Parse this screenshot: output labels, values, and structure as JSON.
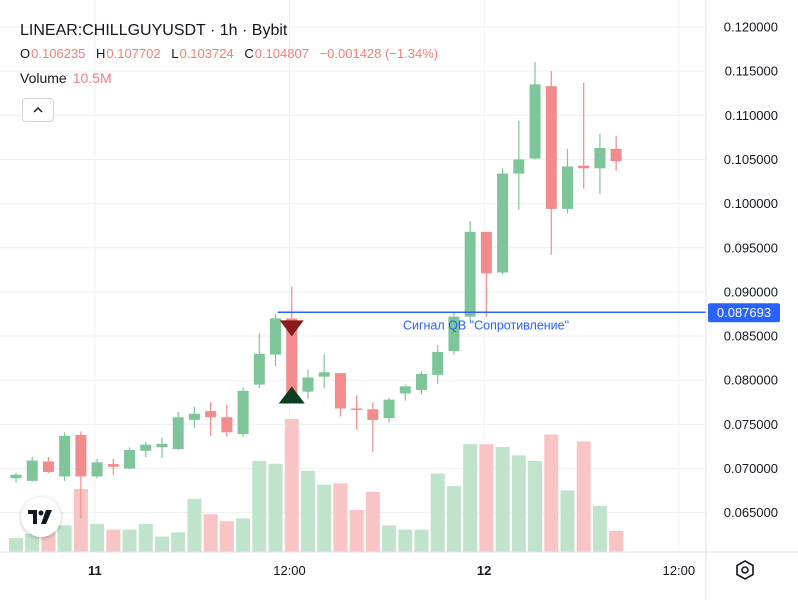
{
  "header": {
    "title": "LINEAR:CHILLGUYUSDT · 1h · Bybit",
    "ohlc": [
      {
        "key": "O",
        "value": "0.106235"
      },
      {
        "key": "H",
        "value": "0.107702"
      },
      {
        "key": "L",
        "value": "0.103724"
      },
      {
        "key": "C",
        "value": "0.104807"
      },
      {
        "key": "",
        "value": "−0.001428 (−1.34%)"
      }
    ],
    "volume_label": "Volume",
    "volume_value": "10.5M"
  },
  "icons": {
    "collapse": "chevron-up-icon",
    "logo": "tradingview-logo-icon",
    "settings": "gear-icon"
  },
  "colors": {
    "up": "#7ec699",
    "down": "#f28b8b",
    "vol_up": "#bfe3cb",
    "vol_down": "#f8c4c4",
    "level_line": "#2962ff",
    "marker_sell": "#8b1a1a",
    "marker_buy": "#0b3d1f",
    "grid": "#eef0f4",
    "text": "#131722"
  },
  "chart_data": {
    "type": "candlestick",
    "symbol": "LINEAR:CHILLGUYUSDT",
    "timeframe": "1h",
    "exchange": "Bybit",
    "ylim": [
      0.0605,
      0.1215
    ],
    "y_ticks": [
      "0.120000",
      "0.115000",
      "0.110000",
      "0.105000",
      "0.100000",
      "0.095000",
      "0.090000",
      "0.085000",
      "0.080000",
      "0.075000",
      "0.070000",
      "0.065000"
    ],
    "x_ticks": [
      "11",
      "12:00",
      "12",
      "12:00"
    ],
    "x_tick_bar_index": [
      4,
      16,
      28,
      40
    ],
    "candles": [
      {
        "o": 0.0689,
        "h": 0.0695,
        "l": 0.0684,
        "c": 0.0693
      },
      {
        "o": 0.0686,
        "h": 0.0713,
        "l": 0.0685,
        "c": 0.0709
      },
      {
        "o": 0.0708,
        "h": 0.0713,
        "l": 0.0695,
        "c": 0.0696
      },
      {
        "o": 0.0691,
        "h": 0.0741,
        "l": 0.0686,
        "c": 0.0737
      },
      {
        "o": 0.0738,
        "h": 0.0742,
        "l": 0.0643,
        "c": 0.0691
      },
      {
        "o": 0.0691,
        "h": 0.0711,
        "l": 0.0689,
        "c": 0.0707
      },
      {
        "o": 0.0705,
        "h": 0.0711,
        "l": 0.0693,
        "c": 0.0702
      },
      {
        "o": 0.07,
        "h": 0.0724,
        "l": 0.0699,
        "c": 0.0721
      },
      {
        "o": 0.072,
        "h": 0.073,
        "l": 0.0713,
        "c": 0.0727
      },
      {
        "o": 0.0724,
        "h": 0.0735,
        "l": 0.0712,
        "c": 0.0728
      },
      {
        "o": 0.0722,
        "h": 0.0764,
        "l": 0.0721,
        "c": 0.0758
      },
      {
        "o": 0.0755,
        "h": 0.077,
        "l": 0.0746,
        "c": 0.0762
      },
      {
        "o": 0.0765,
        "h": 0.0775,
        "l": 0.0737,
        "c": 0.0758
      },
      {
        "o": 0.0758,
        "h": 0.0772,
        "l": 0.0736,
        "c": 0.0741
      },
      {
        "o": 0.0739,
        "h": 0.0792,
        "l": 0.0736,
        "c": 0.0788
      },
      {
        "o": 0.0795,
        "h": 0.0853,
        "l": 0.0791,
        "c": 0.083
      },
      {
        "o": 0.0829,
        "h": 0.0875,
        "l": 0.0816,
        "c": 0.087
      },
      {
        "o": 0.087,
        "h": 0.0906,
        "l": 0.0781,
        "c": 0.0785
      },
      {
        "o": 0.0787,
        "h": 0.0812,
        "l": 0.0779,
        "c": 0.0803
      },
      {
        "o": 0.0804,
        "h": 0.0829,
        "l": 0.0791,
        "c": 0.0809
      },
      {
        "o": 0.0808,
        "h": 0.0808,
        "l": 0.0759,
        "c": 0.0768
      },
      {
        "o": 0.0768,
        "h": 0.0783,
        "l": 0.0744,
        "c": 0.0767
      },
      {
        "o": 0.0767,
        "h": 0.0775,
        "l": 0.0719,
        "c": 0.0755
      },
      {
        "o": 0.0757,
        "h": 0.078,
        "l": 0.0752,
        "c": 0.0778
      },
      {
        "o": 0.0785,
        "h": 0.0795,
        "l": 0.0777,
        "c": 0.0793
      },
      {
        "o": 0.0789,
        "h": 0.081,
        "l": 0.0784,
        "c": 0.0807
      },
      {
        "o": 0.0806,
        "h": 0.084,
        "l": 0.0796,
        "c": 0.0832
      },
      {
        "o": 0.0833,
        "h": 0.0876,
        "l": 0.0829,
        "c": 0.0872
      },
      {
        "o": 0.0872,
        "h": 0.098,
        "l": 0.0867,
        "c": 0.0968
      },
      {
        "o": 0.0968,
        "h": 0.0968,
        "l": 0.0872,
        "c": 0.0921
      },
      {
        "o": 0.0922,
        "h": 0.104,
        "l": 0.092,
        "c": 0.1034
      },
      {
        "o": 0.1034,
        "h": 0.1094,
        "l": 0.0993,
        "c": 0.105
      },
      {
        "o": 0.1051,
        "h": 0.116,
        "l": 0.105,
        "c": 0.1135
      },
      {
        "o": 0.1133,
        "h": 0.115,
        "l": 0.0942,
        "c": 0.0994
      },
      {
        "o": 0.0994,
        "h": 0.1062,
        "l": 0.0989,
        "c": 0.1042
      },
      {
        "o": 0.1043,
        "h": 0.1137,
        "l": 0.1017,
        "c": 0.104
      },
      {
        "o": 0.104,
        "h": 0.1079,
        "l": 0.1011,
        "c": 0.1063
      },
      {
        "o": 0.1062,
        "h": 0.1077,
        "l": 0.1037,
        "c": 0.1048
      }
    ],
    "volume_rel": [
      0.1,
      0.13,
      0.17,
      0.19,
      0.45,
      0.2,
      0.16,
      0.16,
      0.2,
      0.11,
      0.14,
      0.38,
      0.27,
      0.22,
      0.24,
      0.65,
      0.63,
      0.95,
      0.58,
      0.48,
      0.49,
      0.3,
      0.43,
      0.19,
      0.16,
      0.16,
      0.56,
      0.47,
      0.77,
      0.77,
      0.75,
      0.69,
      0.65,
      0.84,
      0.44,
      0.79,
      0.33,
      0.15
    ],
    "level": {
      "value": 0.087693,
      "label": "0.087693",
      "text": "Сигнал QB \"Сопротивление\""
    },
    "markers": [
      {
        "bar": 17,
        "type": "sell"
      },
      {
        "bar": 17,
        "type": "buy"
      }
    ]
  }
}
